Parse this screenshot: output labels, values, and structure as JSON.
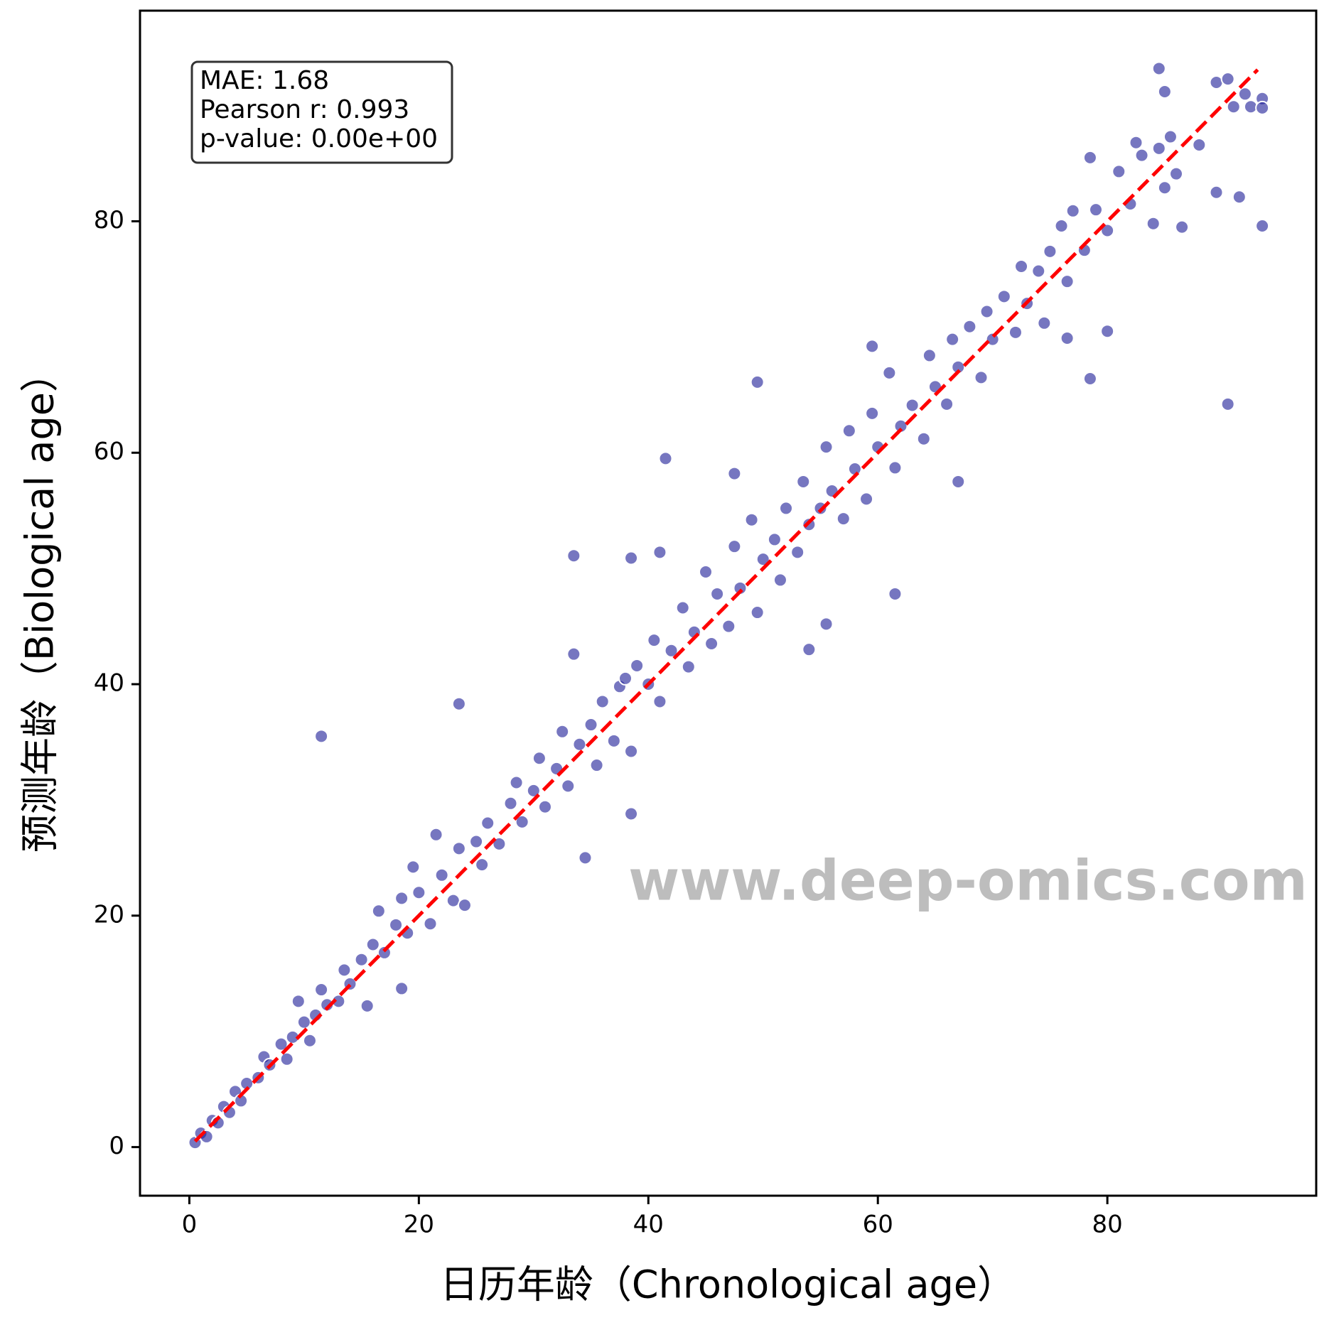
{
  "chart_data": {
    "type": "scatter",
    "xlabel": "日历年龄（Chronological age）",
    "ylabel": "预测年龄（Biological age）",
    "annotation": [
      "MAE: 1.68",
      "Pearson r: 0.993",
      "p-value: 0.00e+00"
    ],
    "watermark": "www.deep-omics.com",
    "color": "#1a1a96",
    "xlim": [
      -4.3,
      98.2
    ],
    "ylim": [
      -4.2,
      98.2
    ],
    "xticks": [
      0,
      20,
      40,
      60,
      80
    ],
    "yticks": [
      0,
      20,
      40,
      60,
      80
    ],
    "grid": false,
    "fit_line": {
      "x": [
        0.5,
        93.1
      ],
      "y": [
        0.5,
        93.1
      ],
      "color": "#ff0000"
    },
    "x": [
      0.5,
      1,
      1.5,
      2,
      2.5,
      3,
      3.5,
      4,
      4.5,
      5,
      6,
      6.5,
      7,
      8,
      8.5,
      9,
      10,
      10.5,
      11,
      11.5,
      12,
      13,
      13.5,
      14,
      15,
      15.5,
      16,
      16.5,
      17,
      18,
      18.5,
      19,
      19.5,
      20,
      21,
      21.5,
      22,
      23,
      23.5,
      24,
      25,
      25.5,
      26,
      27,
      28,
      28.5,
      29,
      30,
      30.5,
      31,
      32,
      32.5,
      33,
      34,
      35,
      35.5,
      36,
      37,
      37.5,
      38,
      38.5,
      39,
      40,
      40.5,
      41,
      42,
      43,
      43.5,
      44,
      45,
      45.5,
      46,
      47,
      47.5,
      48,
      49,
      49.5,
      50,
      51,
      51.5,
      52,
      53,
      53.5,
      54,
      55,
      55.5,
      56,
      57,
      57.5,
      58,
      59,
      59.5,
      60,
      61,
      61.5,
      62,
      63,
      64,
      64.5,
      65,
      66,
      66.5,
      67,
      68,
      69,
      69.5,
      70,
      71,
      72,
      72.5,
      73,
      74,
      74.5,
      75,
      76,
      76.5,
      77,
      78,
      78.5,
      79,
      80,
      81,
      82,
      82.5,
      83,
      84,
      84.5,
      85,
      85.5,
      86,
      86.5,
      88,
      91,
      92.5,
      93.5,
      93.5,
      92,
      11.5,
      23.5,
      33.5,
      33.5,
      34.5,
      38.5,
      38.5,
      41.5,
      41,
      47.5,
      49.5,
      54,
      55.5,
      61.5,
      67,
      90.5,
      84.5,
      85,
      89.5,
      90.5,
      93.5,
      91.5,
      89.5,
      78.5,
      80,
      76.5,
      59.5,
      18.5,
      9.5
    ],
    "values": [
      0.4,
      1.2,
      0.9,
      2.3,
      2.1,
      3.5,
      3.0,
      4.8,
      4.0,
      5.5,
      6.0,
      7.8,
      7.1,
      8.9,
      7.6,
      9.5,
      10.8,
      9.2,
      11.4,
      13.6,
      12.3,
      12.6,
      15.3,
      14.1,
      16.2,
      12.2,
      17.5,
      20.4,
      16.8,
      19.2,
      21.5,
      18.5,
      24.2,
      22.0,
      19.3,
      27,
      23.5,
      21.3,
      25.8,
      20.9,
      26.4,
      24.4,
      28.0,
      26.2,
      29.7,
      31.5,
      28.1,
      30.8,
      33.6,
      29.4,
      32.7,
      35.9,
      31.2,
      34.8,
      36.5,
      33.0,
      38.5,
      35.1,
      39.8,
      40.5,
      34.2,
      41.6,
      40.0,
      43.8,
      38.5,
      42.9,
      46.6,
      41.5,
      44.5,
      49.7,
      43.5,
      47.8,
      45.0,
      51.9,
      48.3,
      54.2,
      46.2,
      50.8,
      52.5,
      49.0,
      55.2,
      51.4,
      57.5,
      53.8,
      55.2,
      60.5,
      56.7,
      54.3,
      61.9,
      58.6,
      56.0,
      63.4,
      60.5,
      66.9,
      58.7,
      62.3,
      64.1,
      61.2,
      68.4,
      65.7,
      64.2,
      69.8,
      67.4,
      70.9,
      66.5,
      72.2,
      69.8,
      73.5,
      70.4,
      76.1,
      72.9,
      75.7,
      71.2,
      77.4,
      79.6,
      74.8,
      80.9,
      77.5,
      85.5,
      81.0,
      79.2,
      84.3,
      81.5,
      86.8,
      85.7,
      79.8,
      86.3,
      82.9,
      87.3,
      84.1,
      79.5,
      86.6,
      89.9,
      89.9,
      90.6,
      89.8,
      91.0,
      35.5,
      38.3,
      51.1,
      42.6,
      25,
      50.9,
      28.8,
      59.5,
      51.4,
      58.2,
      66.1,
      43,
      45.2,
      47.8,
      57.5,
      64.2,
      93.2,
      91.2,
      92,
      92.3,
      79.6,
      82.1,
      82.5,
      66.4,
      70.5,
      69.9,
      69.2,
      13.7,
      12.6
    ]
  }
}
